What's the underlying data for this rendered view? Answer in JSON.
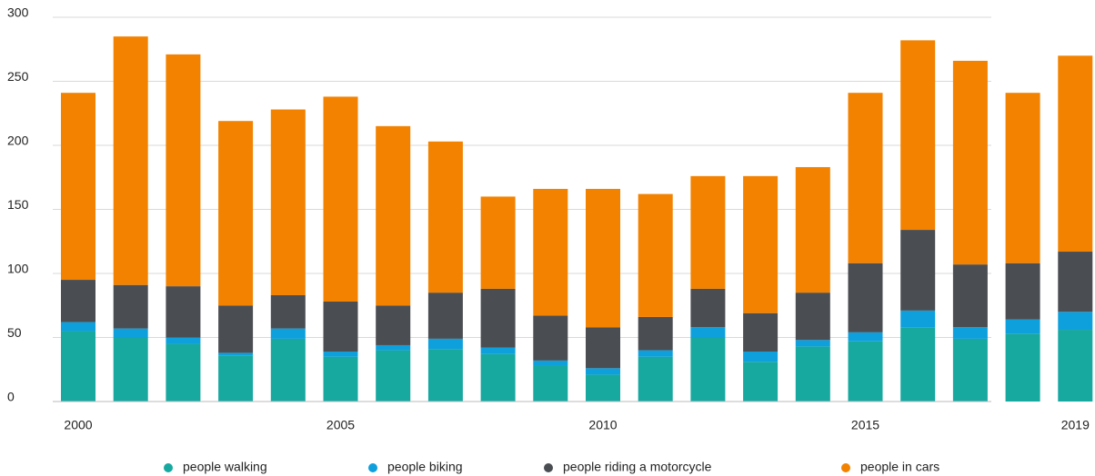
{
  "chart_data": {
    "type": "stacked_bar",
    "categories": [
      "2000",
      null,
      null,
      null,
      null,
      "2005",
      null,
      null,
      null,
      null,
      "2010",
      null,
      null,
      null,
      null,
      "2015",
      null,
      null,
      null,
      "2019"
    ],
    "series": [
      {
        "name": "people walking",
        "color": "#17a8a0",
        "values": [
          55,
          50,
          45,
          36,
          49,
          35,
          40,
          41,
          37,
          28,
          21,
          35,
          50,
          31,
          43,
          47,
          58,
          49,
          53,
          56
        ]
      },
      {
        "name": "people biking",
        "color": "#0ea0dd",
        "values": [
          7,
          7,
          5,
          2,
          8,
          4,
          4,
          8,
          5,
          4,
          5,
          5,
          8,
          8,
          5,
          7,
          13,
          9,
          11,
          14
        ]
      },
      {
        "name": "people riding a motorcycle",
        "color": "#4a4d52",
        "values": [
          33,
          34,
          40,
          37,
          26,
          39,
          31,
          36,
          46,
          35,
          32,
          26,
          30,
          30,
          37,
          54,
          63,
          49,
          44,
          47
        ]
      },
      {
        "name": "people in cars",
        "color": "#f28200",
        "values": [
          146,
          194,
          181,
          144,
          145,
          160,
          140,
          118,
          72,
          99,
          108,
          96,
          88,
          107,
          98,
          133,
          148,
          159,
          133,
          153
        ]
      }
    ],
    "ylim": [
      0,
      300
    ],
    "yticks": [
      0,
      50,
      100,
      150,
      200,
      250,
      300
    ],
    "grid": true,
    "legend": "bottom"
  }
}
